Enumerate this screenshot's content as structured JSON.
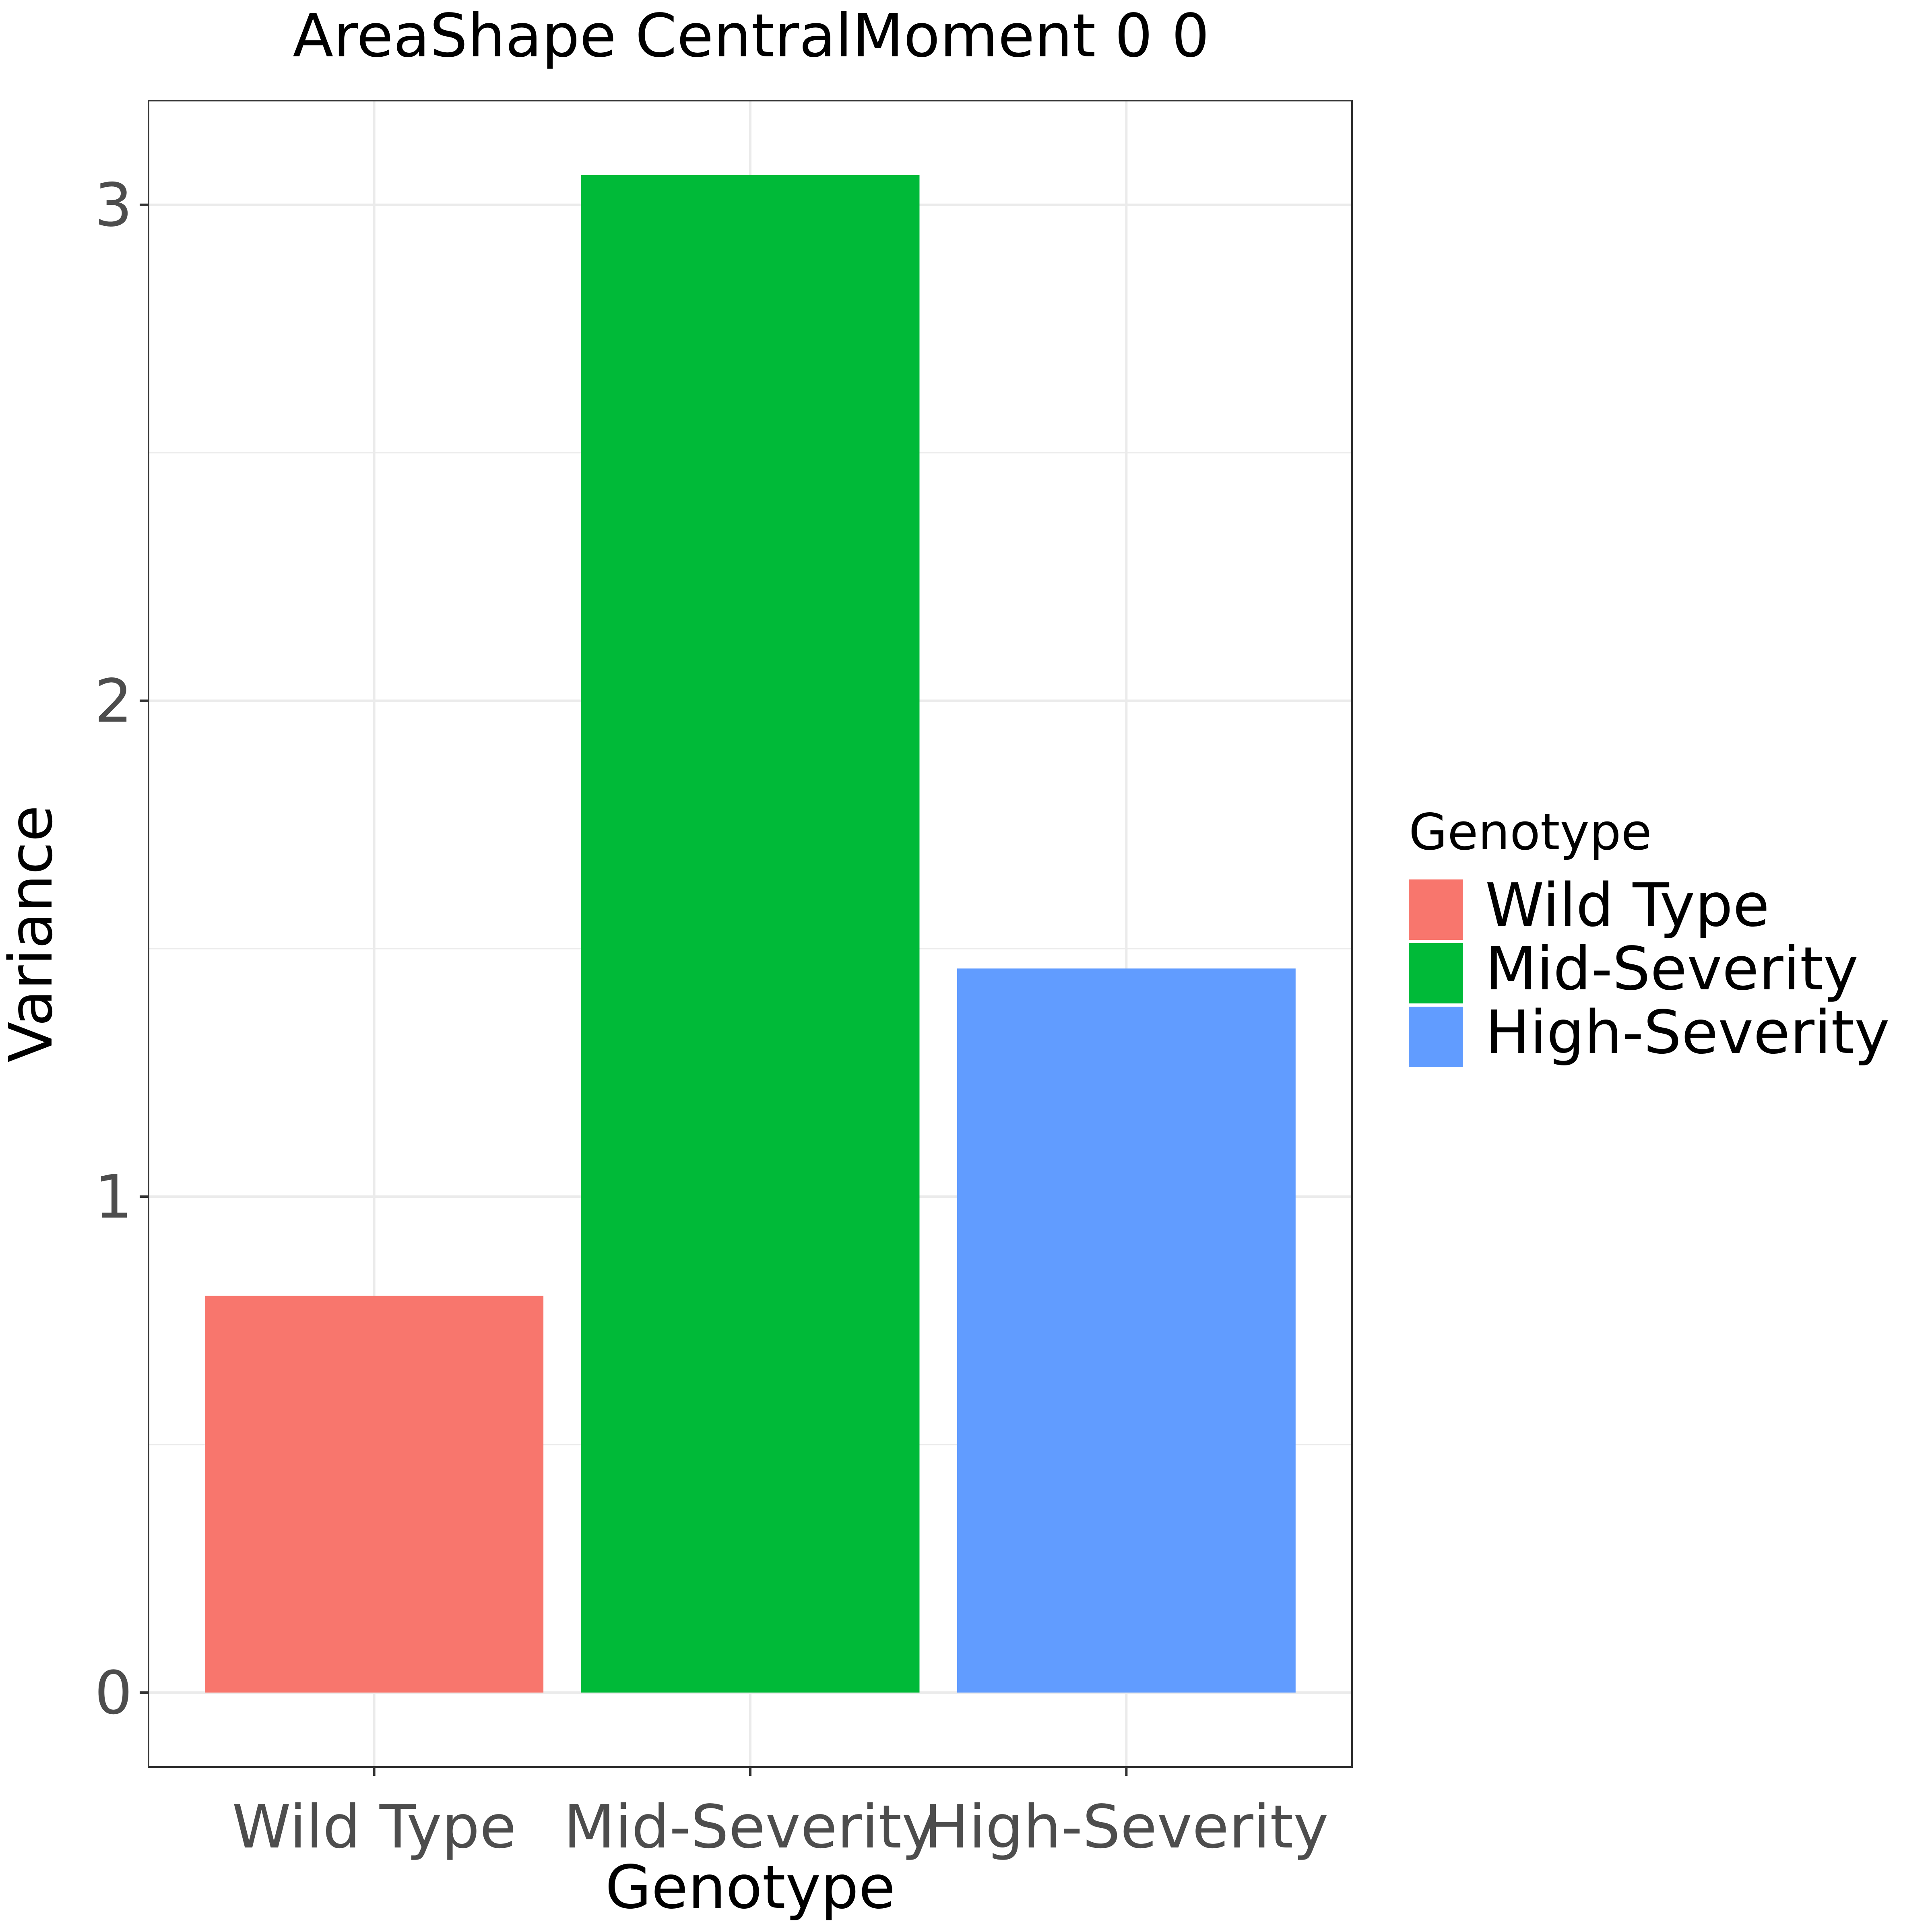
{
  "chart_data": {
    "type": "bar",
    "title": "AreaShape CentralMoment 0 0",
    "xlabel": "Genotype",
    "ylabel": "Variance",
    "categories": [
      "Wild Type",
      "Mid-Severity",
      "High-Severity"
    ],
    "values": [
      0.8,
      3.06,
      1.46
    ],
    "colors": [
      "#F8766D",
      "#00BA38",
      "#619CFF"
    ],
    "yticks": [
      0,
      1,
      2,
      3
    ],
    "ytick_labels": [
      "0",
      "1",
      "2",
      "3"
    ],
    "ylim": [
      -0.15,
      3.21
    ],
    "grid": true,
    "legend": {
      "title": "Genotype",
      "position": "right",
      "items": [
        "Wild Type",
        "Mid-Severity",
        "High-Severity"
      ]
    }
  }
}
